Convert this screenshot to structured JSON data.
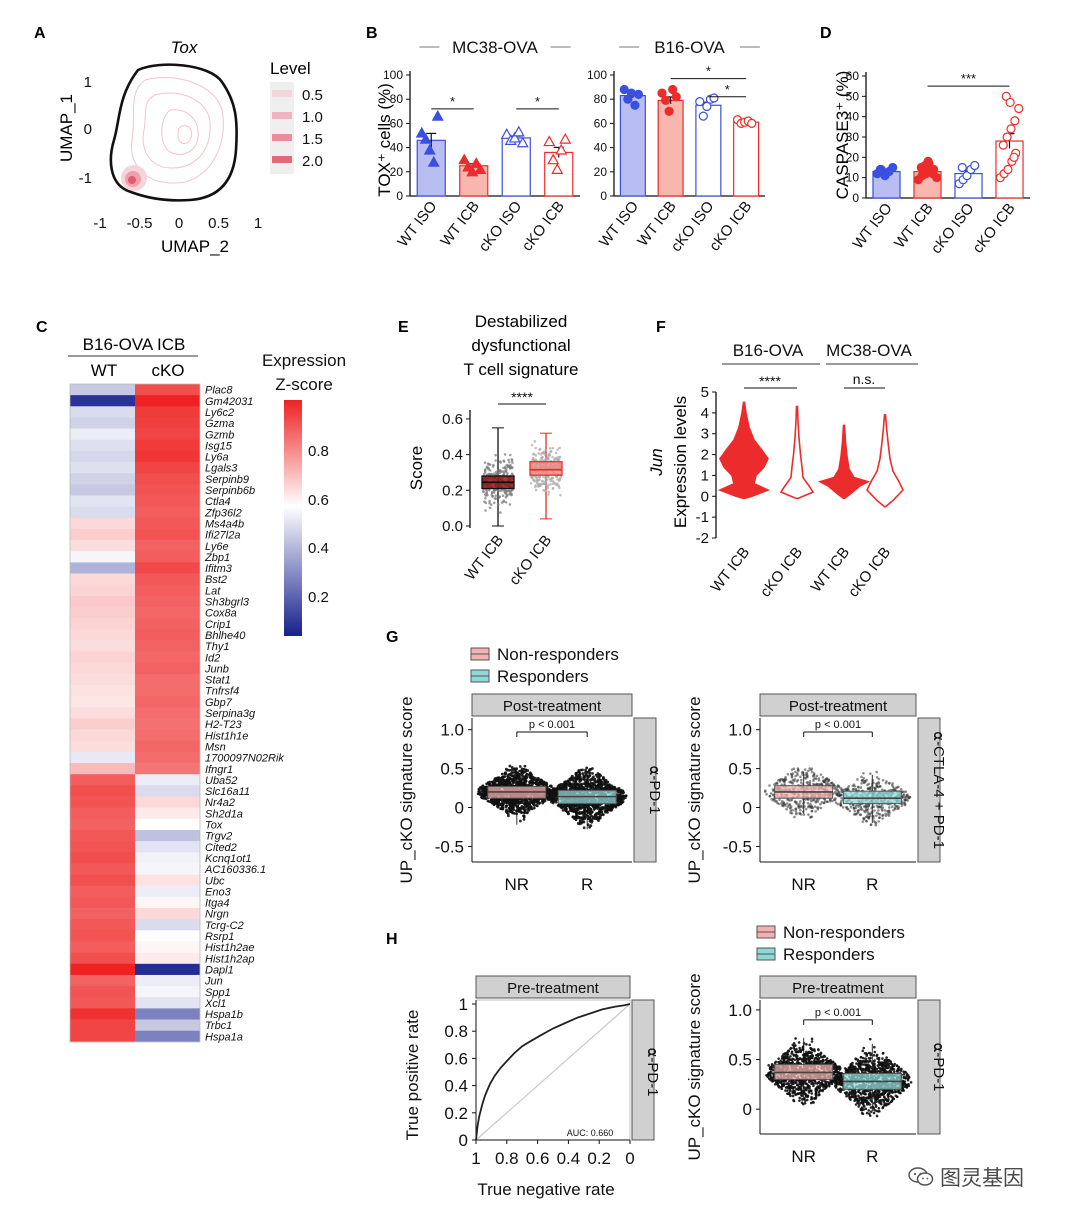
{
  "watermark": {
    "text": "图灵基因",
    "icon": "wechat-icon"
  },
  "colors": {
    "blue": "#3b4fe0",
    "blue_fill": "#b8bdf2",
    "red": "#ec2c2c",
    "red_fill": "#f7b6ae",
    "nr_fill": "#f2b3b0",
    "r_fill": "#8fd8d8",
    "strip": "#d0d0d0",
    "strip_border": "#555555"
  },
  "panels": {
    "A": {
      "letter": "A",
      "title": "Tox",
      "xlabel": "UMAP_2",
      "ylabel": "UMAP_1",
      "xticks": [
        "-1",
        "-0.5",
        "0",
        "0.5",
        "1"
      ],
      "yticks": [
        "1",
        "0",
        "-1"
      ],
      "legend_title": "Level",
      "legend_items": [
        "0.5",
        "1.0",
        "1.5",
        "2.0"
      ]
    },
    "B": {
      "letter": "B",
      "ylabel": "TOX⁺ cells (%)",
      "groups": [
        {
          "title": "MC38-OVA",
          "yticks": [
            "0",
            "20",
            "40",
            "60",
            "80",
            "100"
          ],
          "categories": [
            "WT ISO",
            "WT ICB",
            "cKO ISO",
            "cKO ICB"
          ],
          "values": [
            46,
            25,
            48,
            36
          ],
          "sig": [
            "*",
            "*"
          ]
        },
        {
          "title": "B16-OVA",
          "yticks": [
            "0",
            "20",
            "40",
            "60",
            "80",
            "100"
          ],
          "categories": [
            "WT ISO",
            "WT ICB",
            "cKO ISO",
            "cKO ICB"
          ],
          "values": [
            83,
            79,
            75,
            61
          ],
          "sig": [
            "*",
            "*"
          ]
        }
      ]
    },
    "C": {
      "letter": "C",
      "title": "B16-OVA ICB",
      "columns": [
        "WT",
        "cKO"
      ],
      "legend_title": "Expression\nZ-score",
      "legend_ticks": [
        "0.8",
        "0.6",
        "0.4",
        "0.2"
      ],
      "genes": [
        "Plac8",
        "Gm42031",
        "Ly6c2",
        "Gzma",
        "Gzmb",
        "Isg15",
        "Ly6a",
        "Lgals3",
        "Serpinb9",
        "Serpinb6b",
        "Ctla4",
        "Zfp36l2",
        "Ms4a4b",
        "Ifi27l2a",
        "Ly6e",
        "Zbp1",
        "Ifitm3",
        "Bst2",
        "Lat",
        "Sh3bgrl3",
        "Cox8a",
        "Crip1",
        "Bhlhe40",
        "Thy1",
        "Id2",
        "Junb",
        "Stat1",
        "Tnfrsf4",
        "Gbp7",
        "Serpina3g",
        "H2-T23",
        "Hist1h1e",
        "Msn",
        "1700097N02Rik",
        "Ifngr1",
        "Uba52",
        "Slc16a11",
        "Nr4a2",
        "Sh2d1a",
        "Tox",
        "Trgv2",
        "Cited2",
        "Kcnq1ot1",
        "AC160336.1",
        "Ubc",
        "Eno3",
        "Itga4",
        "Nrgn",
        "Tcrg-C2",
        "Rsrp1",
        "Hist1h2ae",
        "Hist1h2ap",
        "Dapl1",
        "Jun",
        "Spp1",
        "Xcl1",
        "Hspa1b",
        "Trbc1",
        "Hspa1a"
      ],
      "wt_values": [
        0.38,
        0.04,
        0.42,
        0.4,
        0.46,
        0.43,
        0.41,
        0.43,
        0.4,
        0.38,
        0.44,
        0.42,
        0.58,
        0.6,
        0.57,
        0.48,
        0.33,
        0.58,
        0.59,
        0.61,
        0.6,
        0.59,
        0.58,
        0.57,
        0.59,
        0.58,
        0.57,
        0.56,
        0.55,
        0.57,
        0.6,
        0.58,
        0.57,
        0.45,
        0.64,
        0.83,
        0.86,
        0.85,
        0.83,
        0.82,
        0.84,
        0.85,
        0.86,
        0.84,
        0.86,
        0.83,
        0.84,
        0.82,
        0.84,
        0.85,
        0.83,
        0.86,
        0.95,
        0.82,
        0.85,
        0.84,
        0.92,
        0.88,
        0.88
      ],
      "cko_values": [
        0.86,
        0.96,
        0.9,
        0.89,
        0.88,
        0.9,
        0.91,
        0.88,
        0.86,
        0.85,
        0.84,
        0.83,
        0.84,
        0.85,
        0.82,
        0.83,
        0.87,
        0.84,
        0.83,
        0.82,
        0.81,
        0.82,
        0.83,
        0.82,
        0.81,
        0.82,
        0.8,
        0.8,
        0.81,
        0.8,
        0.79,
        0.8,
        0.81,
        0.8,
        0.78,
        0.46,
        0.42,
        0.58,
        0.54,
        0.5,
        0.36,
        0.44,
        0.47,
        0.48,
        0.56,
        0.46,
        0.52,
        0.58,
        0.42,
        0.5,
        0.52,
        0.54,
        0.03,
        0.46,
        0.48,
        0.44,
        0.22,
        0.38,
        0.22
      ]
    },
    "D": {
      "letter": "D",
      "ylabel": "CASPASE3⁺ (%)",
      "yticks": [
        "0",
        "10",
        "20",
        "30",
        "40",
        "50",
        "60"
      ],
      "categories": [
        "WT ISO",
        "WT ICB",
        "cKO ISO",
        "cKO ICB"
      ],
      "values": [
        13,
        13,
        12,
        28
      ],
      "sig": "***"
    },
    "E": {
      "letter": "E",
      "title": [
        "Destabilized",
        "dysfunctional",
        "T cell signature"
      ],
      "ylabel": "Score",
      "yticks": [
        "0.0",
        "0.2",
        "0.4",
        "0.6"
      ],
      "categories": [
        "WT ICB",
        "cKO ICB"
      ],
      "sig": "****",
      "boxes": [
        {
          "q1": 0.21,
          "median": 0.245,
          "q3": 0.28,
          "wlo": 0.0,
          "whi": 0.55
        },
        {
          "q1": 0.285,
          "median": 0.315,
          "q3": 0.36,
          "wlo": 0.04,
          "whi": 0.52
        }
      ]
    },
    "F": {
      "letter": "F",
      "ylabel_italic": "Jun",
      "ylabel": "Expression levels",
      "yticks": [
        "-2",
        "-1",
        "0",
        "1",
        "2",
        "3",
        "4",
        "5"
      ],
      "group_titles": [
        "B16-OVA",
        "MC38-OVA"
      ],
      "categories": [
        "WT ICB",
        "cKO ICB",
        "WT ICB",
        "cKO ICB"
      ],
      "sig": [
        "****",
        "n.s."
      ]
    },
    "G": {
      "letter": "G",
      "legend": [
        "Non-responders",
        "Responders"
      ],
      "ylabel": "UP_cKO signature score",
      "yticks": [
        "1.0",
        "0.5",
        "0",
        "-0.5"
      ],
      "subplots": [
        {
          "strip_top": "Post-treatment",
          "strip_right": "⍺-PD-1",
          "pvalue": "p < 0.001",
          "categories": [
            "NR",
            "R"
          ],
          "boxes": [
            {
              "q1": 0.12,
              "median": 0.2,
              "q3": 0.27,
              "wlo": -0.22,
              "whi": 0.5
            },
            {
              "q1": 0.05,
              "median": 0.14,
              "q3": 0.22,
              "wlo": -0.28,
              "whi": 0.46
            }
          ]
        },
        {
          "strip_top": "Post-treatment",
          "strip_right": "⍺-CTLA-4 + PD-1",
          "pvalue": "p < 0.001",
          "categories": [
            "NR",
            "R"
          ],
          "boxes": [
            {
              "q1": 0.12,
              "median": 0.2,
              "q3": 0.28,
              "wlo": -0.08,
              "whi": 0.46
            },
            {
              "q1": 0.05,
              "median": 0.12,
              "q3": 0.21,
              "wlo": -0.2,
              "whi": 0.42
            }
          ]
        }
      ]
    },
    "H": {
      "letter": "H",
      "legend": [
        "Non-responders",
        "Responders"
      ],
      "roc": {
        "strip_top": "Pre-treatment",
        "strip_right": "⍺-PD-1",
        "xlabel": "True negative rate",
        "ylabel": "True positive rate",
        "xticks": [
          "1",
          "0.8",
          "0.6",
          "0.4",
          "0.2",
          "0"
        ],
        "yticks": [
          "0",
          "0.2",
          "0.4",
          "0.6",
          "0.8",
          "1"
        ],
        "auc_label": "AUC: 0.660",
        "fpr": [
          0,
          0.01,
          0.02,
          0.04,
          0.06,
          0.09,
          0.12,
          0.16,
          0.2,
          0.25,
          0.3,
          0.36,
          0.42,
          0.5,
          0.58,
          0.66,
          0.74,
          0.82,
          0.9,
          0.96,
          1
        ],
        "tpr": [
          0,
          0.1,
          0.17,
          0.26,
          0.33,
          0.41,
          0.47,
          0.53,
          0.58,
          0.64,
          0.69,
          0.73,
          0.77,
          0.82,
          0.86,
          0.9,
          0.93,
          0.96,
          0.98,
          0.99,
          1
        ]
      },
      "box": {
        "strip_top": "Pre-treatment",
        "strip_right": "⍺-PD-1",
        "pvalue": "p < 0.001",
        "ylabel": "UP_cKO signature score",
        "yticks": [
          "1.0",
          "0.5",
          "0"
        ],
        "categories": [
          "NR",
          "R"
        ],
        "boxes": [
          {
            "q1": 0.3,
            "median": 0.37,
            "q3": 0.45,
            "wlo": 0.1,
            "whi": 0.72
          },
          {
            "q1": 0.2,
            "median": 0.28,
            "q3": 0.36,
            "wlo": -0.02,
            "whi": 0.66
          }
        ]
      }
    }
  },
  "chart_data": [
    {
      "type": "heatmap",
      "title": "B16-OVA ICB",
      "legend": "Expression Z-score",
      "note": "rows = genes listed in panels.C.genes; columns WT, cKO; values in panels.C.wt_values / cko_values"
    },
    {
      "type": "bar",
      "title": "MC38-OVA",
      "ylabel": "TOX⁺ cells (%)",
      "ylim": [
        0,
        100
      ],
      "categories": [
        "WT ISO",
        "WT ICB",
        "cKO ISO",
        "cKO ICB"
      ],
      "values": [
        46,
        25,
        48,
        36
      ],
      "points": [
        [
          52,
          47,
          38,
          28,
          66
        ],
        [
          30,
          24,
          20,
          27,
          22
        ],
        [
          51,
          46,
          48,
          53,
          44
        ],
        [
          45,
          30,
          22,
          38,
          47
        ]
      ]
    },
    {
      "type": "bar",
      "title": "B16-OVA",
      "ylabel": "TOX⁺ cells (%)",
      "ylim": [
        0,
        100
      ],
      "categories": [
        "WT ISO",
        "WT ICB",
        "cKO ISO",
        "cKO ICB"
      ],
      "values": [
        83,
        79,
        75,
        61
      ],
      "points": [
        [
          88,
          80,
          85,
          75,
          84
        ],
        [
          85,
          79,
          70,
          88,
          82
        ],
        [
          78,
          66,
          74,
          80,
          81
        ],
        [
          63,
          60,
          61,
          62,
          60
        ]
      ]
    },
    {
      "type": "bar",
      "title": "CASPASE3⁺",
      "ylabel": "CASPASE3⁺ (%)",
      "ylim": [
        0,
        60
      ],
      "categories": [
        "WT ISO",
        "WT ICB",
        "cKO ISO",
        "cKO ICB"
      ],
      "values": [
        13,
        13,
        12,
        28
      ],
      "points": [
        [
          12,
          14,
          11,
          13,
          15,
          14
        ],
        [
          9,
          11,
          12,
          13,
          14,
          15,
          16,
          17,
          12,
          10,
          13,
          18
        ],
        [
          7,
          9,
          11,
          14,
          16,
          15
        ],
        [
          10,
          12,
          14,
          18,
          22,
          26,
          30,
          34,
          38,
          44,
          50,
          47,
          20
        ]
      ]
    },
    {
      "type": "scatter",
      "title": "Destabilized dysfunctional T cell signature",
      "ylabel": "Score",
      "ylim": [
        0,
        0.65
      ],
      "categories": [
        "WT ICB",
        "cKO ICB"
      ],
      "median": [
        0.245,
        0.315
      ],
      "q1": [
        0.21,
        0.285
      ],
      "q3": [
        0.28,
        0.36
      ],
      "whisker_low": [
        0.0,
        0.04
      ],
      "whisker_high": [
        0.55,
        0.52
      ]
    },
    {
      "type": "area",
      "title": "Jun expression (violin)",
      "ylabel": "Jun Expression levels",
      "ylim": [
        -2,
        5
      ],
      "categories": [
        "B16 WT ICB",
        "B16 cKO ICB",
        "MC38 WT ICB",
        "MC38 cKO ICB"
      ],
      "range_max": [
        4.5,
        4.3,
        3.4,
        3.9
      ]
    },
    {
      "type": "line",
      "title": "Pre-treatment ROC (⍺-PD-1)",
      "xlabel": "True negative rate",
      "ylabel": "True positive rate",
      "auc": 0.66
    }
  ]
}
